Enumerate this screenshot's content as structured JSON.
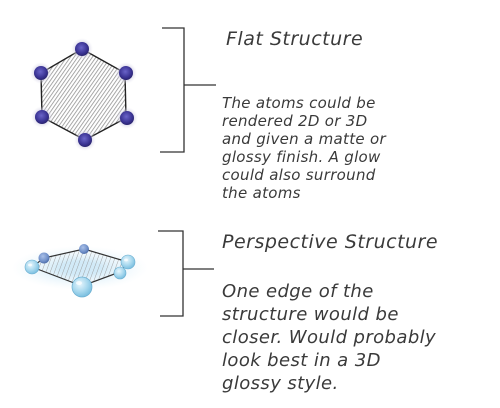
{
  "flat_section": {
    "title": "Flat Structure",
    "description_lines": [
      "The atoms could be",
      "rendered 2D or 3D",
      "and given a matte or",
      "glossy finish. A glow",
      "could also surround",
      "the atoms"
    ],
    "atom_color": "#3a3393",
    "fill_color": "#7a7a7a"
  },
  "perspective_section": {
    "title": "Perspective Structure",
    "description_lines": [
      "One edge of the",
      "structure would be",
      "closer. Would probably",
      "look best in a 3D",
      "glossy style."
    ],
    "atom_color": "#a7d8ee",
    "glow_color": "#cfe9f7"
  }
}
